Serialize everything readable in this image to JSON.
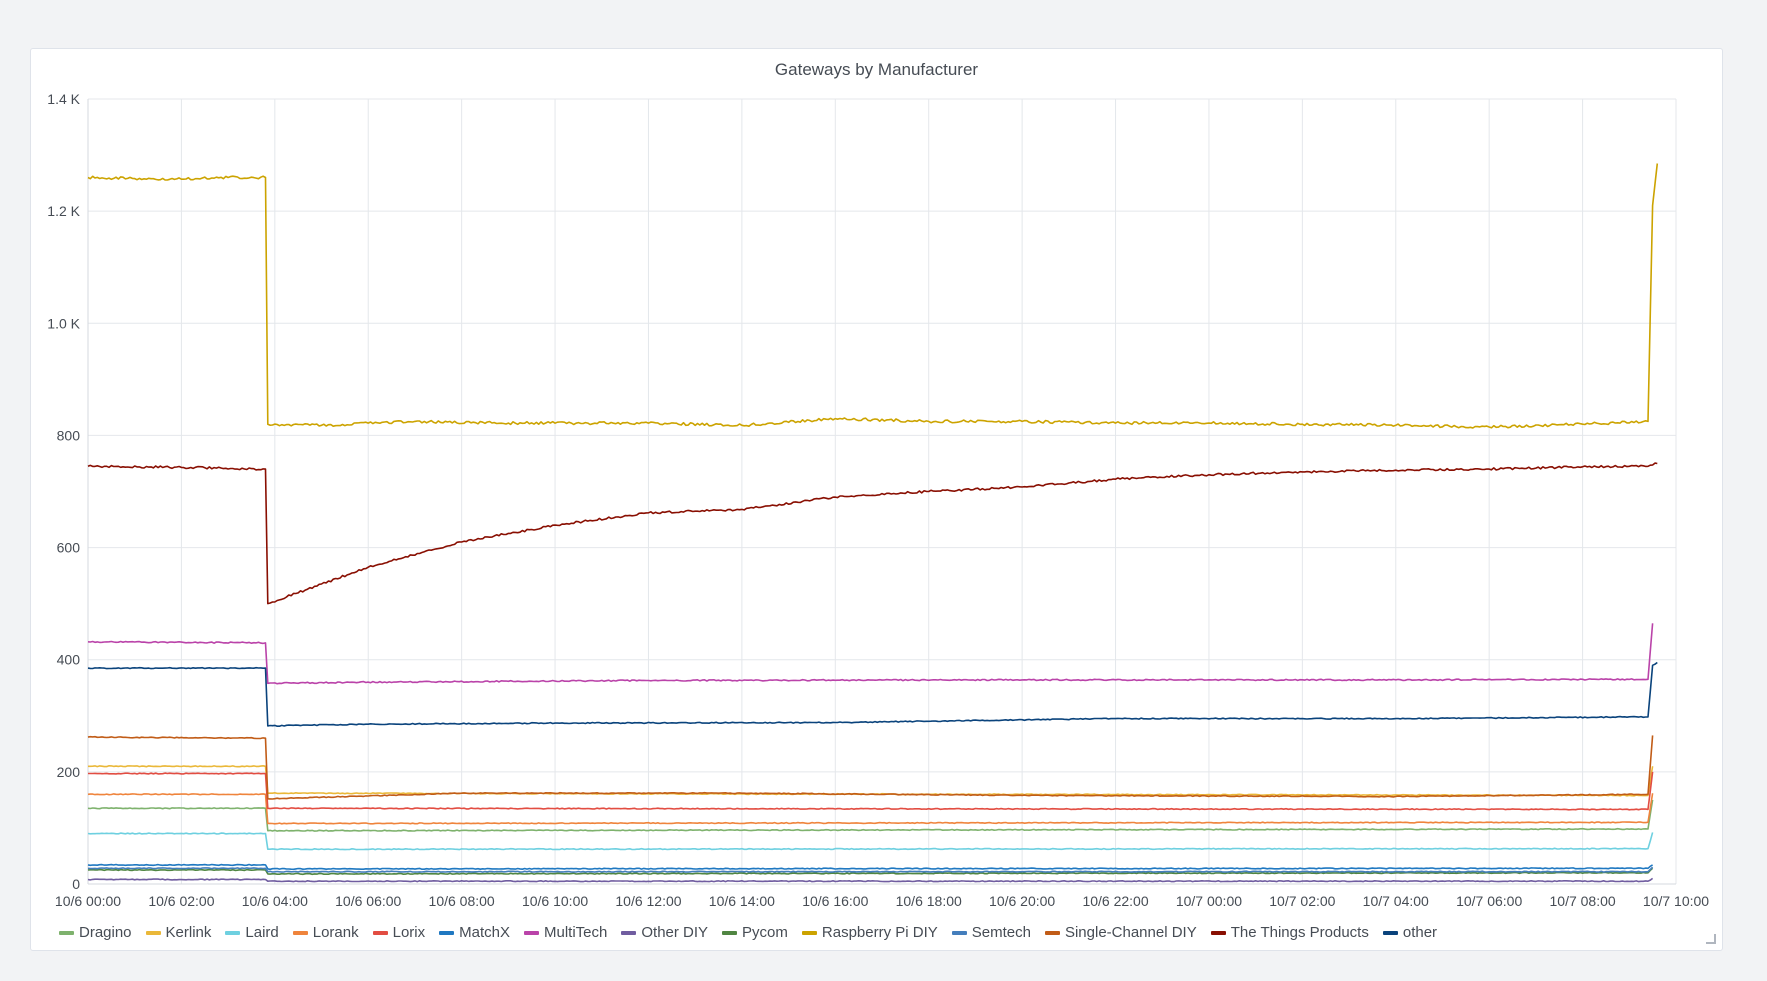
{
  "panel": {
    "title": "Gateways by Manufacturer"
  },
  "colors": {
    "Dragino": "#7eb26d",
    "Kerlink": "#eab839",
    "Laird": "#6ed0e0",
    "Lorank": "#ef843c",
    "Lorix": "#e24d42",
    "MatchX": "#1f78c1",
    "MultiTech": "#ba43a9",
    "Other DIY": "#705da0",
    "Pycom": "#508642",
    "Raspberry Pi DIY": "#cca300",
    "Semtech": "#447ebc",
    "Single-Channel DIY": "#c15c17",
    "The Things Products": "#890f02",
    "other": "#0a437c"
  },
  "chart_data": {
    "type": "line",
    "title": "Gateways by Manufacturer",
    "xlabel": "",
    "ylabel": "",
    "ylim": [
      0,
      1400
    ],
    "y_ticks": [
      "0",
      "200",
      "400",
      "600",
      "800",
      "1.0 K",
      "1.2 K",
      "1.4 K"
    ],
    "x_ticks": [
      "10/6 00:00",
      "10/6 02:00",
      "10/6 04:00",
      "10/6 06:00",
      "10/6 08:00",
      "10/6 10:00",
      "10/6 12:00",
      "10/6 14:00",
      "10/6 16:00",
      "10/6 18:00",
      "10/6 20:00",
      "10/6 22:00",
      "10/7 00:00",
      "10/7 02:00",
      "10/7 04:00",
      "10/7 06:00",
      "10/7 08:00",
      "10/7 10:00"
    ],
    "x_range_hours": [
      0,
      34
    ],
    "grid": true,
    "legend_position": "bottom",
    "series": [
      {
        "name": "Dragino",
        "x": [
          0,
          3.8,
          3.85,
          33.4,
          33.5
        ],
        "y": [
          135,
          135,
          95,
          98,
          150
        ]
      },
      {
        "name": "Kerlink",
        "x": [
          0,
          3.8,
          3.85,
          33.4,
          33.5
        ],
        "y": [
          210,
          210,
          162,
          158,
          210
        ]
      },
      {
        "name": "Laird",
        "x": [
          0,
          3.8,
          3.85,
          33.4,
          33.5
        ],
        "y": [
          90,
          90,
          62,
          63,
          92
        ]
      },
      {
        "name": "Lorank",
        "x": [
          0,
          3.8,
          3.85,
          33.4,
          33.5
        ],
        "y": [
          160,
          160,
          108,
          110,
          162
        ]
      },
      {
        "name": "Lorix",
        "x": [
          0,
          3.8,
          3.85,
          33.4,
          33.5
        ],
        "y": [
          197,
          197,
          135,
          133,
          200
        ]
      },
      {
        "name": "MatchX",
        "x": [
          0,
          3.8,
          3.85,
          33.4,
          33.5
        ],
        "y": [
          34,
          34,
          27,
          28,
          34
        ]
      },
      {
        "name": "MultiTech",
        "x": [
          0,
          3.8,
          3.85,
          6,
          12,
          20,
          28,
          33.4,
          33.5
        ],
        "y": [
          432,
          430,
          358,
          360,
          363,
          364,
          364,
          365,
          465
        ]
      },
      {
        "name": "Other DIY",
        "x": [
          0,
          3.8,
          3.85,
          33.4,
          33.5
        ],
        "y": [
          8,
          8,
          5,
          5,
          10
        ]
      },
      {
        "name": "Pycom",
        "x": [
          0,
          3.8,
          3.85,
          33.4,
          33.5
        ],
        "y": [
          25,
          25,
          18,
          20,
          28
        ]
      },
      {
        "name": "Raspberry Pi DIY",
        "x": [
          0,
          1,
          2,
          3,
          3.8,
          3.85,
          5,
          7,
          9,
          12,
          14,
          16,
          18,
          20,
          22,
          24,
          26,
          28,
          30,
          32,
          33.4,
          33.5,
          33.6
        ],
        "y": [
          1260,
          1258,
          1257,
          1260,
          1260,
          820,
          818,
          825,
          822,
          822,
          818,
          830,
          825,
          825,
          822,
          822,
          820,
          818,
          815,
          820,
          825,
          1210,
          1285
        ]
      },
      {
        "name": "Semtech",
        "x": [
          0,
          3.8,
          3.85,
          33.4,
          33.5
        ],
        "y": [
          28,
          28,
          22,
          22,
          30
        ]
      },
      {
        "name": "Single-Channel DIY",
        "x": [
          0,
          3.8,
          3.85,
          8,
          14,
          20,
          28,
          33.4,
          33.5
        ],
        "y": [
          262,
          260,
          152,
          162,
          162,
          158,
          156,
          160,
          265
        ]
      },
      {
        "name": "The Things Products",
        "x": [
          0,
          2,
          3.8,
          3.85,
          5,
          6,
          8,
          10,
          12,
          14,
          16,
          18,
          20,
          22,
          24,
          26,
          28,
          30,
          32,
          33.4,
          33.6
        ],
        "y": [
          745,
          743,
          740,
          500,
          535,
          565,
          610,
          640,
          662,
          668,
          690,
          700,
          708,
          722,
          730,
          735,
          738,
          740,
          744,
          745,
          750
        ]
      },
      {
        "name": "other",
        "x": [
          0,
          3.8,
          3.85,
          6,
          10,
          16,
          22,
          28,
          33.4,
          33.5,
          33.6
        ],
        "y": [
          385,
          385,
          282,
          285,
          287,
          288,
          295,
          295,
          298,
          390,
          395
        ]
      }
    ]
  }
}
